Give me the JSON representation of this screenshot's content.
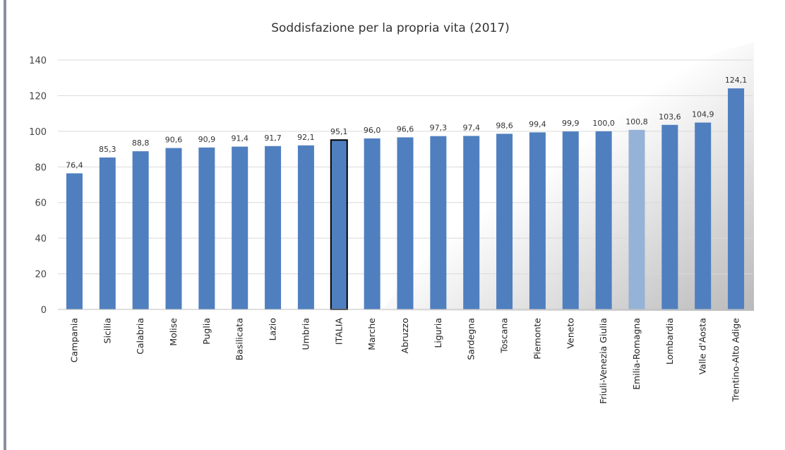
{
  "chart_data": {
    "type": "bar",
    "title": "Soddisfazione per la propria vita  (2017)",
    "categories": [
      "Campania",
      "Sicilia",
      "Calabria",
      "Molise",
      "Puglia",
      "Basilicata",
      "Lazio",
      "Umbria",
      "ITALIA",
      "Marche",
      "Abruzzo",
      "Liguria",
      "Sardegna",
      "Toscana",
      "Piemonte",
      "Veneto",
      "Friuli-Venezia Giulia",
      "Emilia-Romagna",
      "Lombardia",
      "Valle d'Aosta",
      "Trentino-Alto Adige"
    ],
    "values": [
      76.4,
      85.3,
      88.8,
      90.6,
      90.9,
      91.4,
      91.7,
      92.1,
      95.1,
      96.0,
      96.6,
      97.3,
      97.4,
      98.6,
      99.4,
      99.9,
      100.0,
      100.8,
      103.6,
      104.9,
      124.1
    ],
    "value_labels": [
      "76,4",
      "85,3",
      "88,8",
      "90,6",
      "90,9",
      "91,4",
      "91,7",
      "92,1",
      "95,1",
      "96,0",
      "96,6",
      "97,3",
      "97,4",
      "98,6",
      "99,4",
      "99,9",
      "100,0",
      "100,8",
      "103,6",
      "104,9",
      "124,1"
    ],
    "colors": [
      "#4f7fbf",
      "#4f7fbf",
      "#4f7fbf",
      "#4f7fbf",
      "#4f7fbf",
      "#4f7fbf",
      "#4f7fbf",
      "#4f7fbf",
      "#4f7fbf",
      "#4f7fbf",
      "#4f7fbf",
      "#4f7fbf",
      "#4f7fbf",
      "#4f7fbf",
      "#4f7fbf",
      "#4f7fbf",
      "#4f7fbf",
      "#95b3d7",
      "#4f7fbf",
      "#4f7fbf",
      "#4f7fbf"
    ],
    "edge_colors": [
      null,
      null,
      null,
      null,
      null,
      null,
      null,
      null,
      "#000000",
      null,
      null,
      null,
      null,
      null,
      null,
      null,
      null,
      null,
      null,
      null,
      null
    ],
    "ylim": [
      0,
      140
    ],
    "yticks": [
      0,
      20,
      40,
      60,
      80,
      100,
      120,
      140
    ],
    "grid": true
  }
}
